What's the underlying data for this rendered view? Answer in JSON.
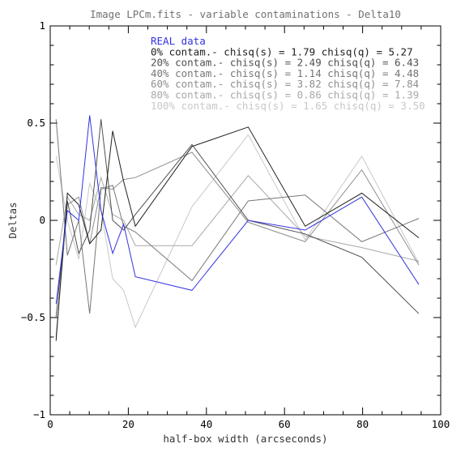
{
  "chart_data": {
    "type": "line",
    "title": "Image LPCm.fits - variable contaminations - Delta10",
    "xlabel": "half-box width (arcseconds)",
    "ylabel": "Deltas",
    "xlim": [
      0,
      100
    ],
    "ylim": [
      -1,
      1
    ],
    "xticks": [
      0,
      20,
      40,
      60,
      80,
      100
    ],
    "xtick_labels": [
      "0",
      "20",
      "40",
      "60",
      "80",
      "100"
    ],
    "yticks": [
      -1,
      -0.5,
      0,
      0.5,
      1
    ],
    "ytick_labels": [
      "−1",
      "−0.5",
      "0",
      "0.5",
      "1"
    ],
    "grid": false,
    "legend_position": "top-center",
    "x": [
      1.5,
      4.4,
      7.3,
      10.1,
      13.0,
      16.0,
      18.8,
      21.8,
      36.3,
      50.7,
      65.3,
      79.8,
      94.4
    ],
    "series": [
      {
        "name": "REAL data",
        "color": "#3232e0",
        "values": [
          -0.43,
          0.05,
          0.0,
          0.54,
          0.05,
          -0.17,
          -0.02,
          -0.29,
          -0.36,
          0.0,
          -0.05,
          0.12,
          -0.33
        ]
      },
      {
        "name": "0% contam.- chisq(s) = 1.79 chisq(q) = 5.27",
        "color": "#202020",
        "values": [
          -0.62,
          0.14,
          0.08,
          -0.12,
          -0.05,
          0.46,
          0.2,
          -0.03,
          0.38,
          0.48,
          -0.03,
          0.14,
          -0.09
        ]
      },
      {
        "name": "20% contam.- chisq(s) = 2.49 chisq(q) = 6.43",
        "color": "#505050",
        "values": [
          -0.5,
          0.1,
          -0.17,
          -0.05,
          0.52,
          0.0,
          -0.05,
          0.03,
          0.39,
          0.0,
          -0.07,
          -0.19,
          -0.48
        ]
      },
      {
        "name": "40% contam.- chisq(s) = 1.14 chisq(q) = 4.48",
        "color": "#777777",
        "values": [
          0.52,
          -0.18,
          0.0,
          -0.48,
          0.16,
          0.18,
          -0.03,
          -0.06,
          -0.31,
          0.1,
          0.13,
          -0.11,
          0.01
        ]
      },
      {
        "name": "60% contam.- chisq(s) = 3.82 chisq(q) = 7.84",
        "color": "#8e8e8e",
        "values": [
          -0.6,
          0.08,
          0.12,
          -0.12,
          0.17,
          0.16,
          0.21,
          0.22,
          0.35,
          -0.01,
          -0.11,
          0.26,
          -0.23
        ]
      },
      {
        "name": "80% contam.- chisq(s) = 0.86 chisq(q) = 1.39",
        "color": "#a8a8a8",
        "values": [
          -0.23,
          0.12,
          0.03,
          0.0,
          0.22,
          0.03,
          0.0,
          -0.13,
          -0.13,
          0.23,
          -0.08,
          -0.14,
          -0.21
        ]
      },
      {
        "name": "100% contam.- chisq(s) = 1.65 chisq(q) = 3.50",
        "color": "#c8c8c8",
        "values": [
          0.33,
          0.0,
          -0.2,
          0.19,
          0.05,
          -0.3,
          -0.36,
          -0.55,
          0.07,
          0.44,
          -0.1,
          0.33,
          -0.22
        ]
      }
    ]
  }
}
